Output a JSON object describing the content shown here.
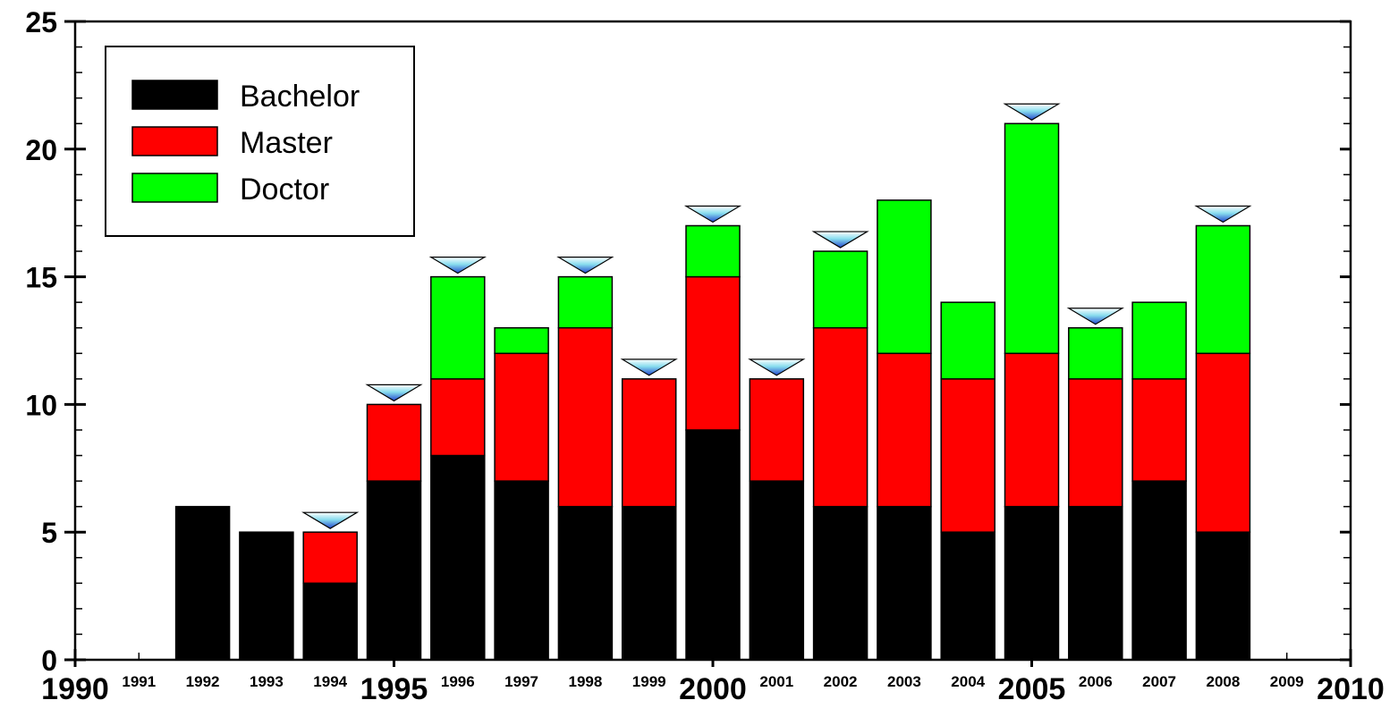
{
  "chart_data": {
    "type": "bar",
    "stacked": true,
    "title": "",
    "xlabel": "",
    "ylabel": "",
    "categories": [
      1992,
      1993,
      1994,
      1995,
      1996,
      1997,
      1998,
      1999,
      2000,
      2001,
      2002,
      2003,
      2004,
      2005,
      2006,
      2007,
      2008
    ],
    "series": [
      {
        "name": "Bachelor",
        "color": "#000000",
        "values": [
          6,
          5,
          3,
          7,
          8,
          7,
          6,
          6,
          9,
          7,
          6,
          6,
          5,
          6,
          6,
          7,
          5
        ]
      },
      {
        "name": "Master",
        "color": "#ff0000",
        "values": [
          0,
          0,
          2,
          3,
          3,
          5,
          7,
          5,
          6,
          4,
          7,
          6,
          6,
          6,
          5,
          4,
          7
        ]
      },
      {
        "name": "Doctor",
        "color": "#00ff00",
        "values": [
          0,
          0,
          0,
          0,
          4,
          1,
          2,
          0,
          2,
          0,
          3,
          6,
          3,
          9,
          2,
          3,
          5
        ]
      }
    ],
    "markers": {
      "shape": "triangle-down",
      "color": "#3366cc",
      "years": [
        1994,
        1995,
        1996,
        1998,
        1999,
        2000,
        2001,
        2002,
        2005,
        2006,
        2008
      ]
    },
    "xlim": [
      1990,
      2010
    ],
    "ylim": [
      0,
      25
    ],
    "y_ticks": [
      "0",
      "5",
      "10",
      "15",
      "20",
      "25"
    ],
    "x_major_ticks": [
      "1990",
      "1995",
      "2000",
      "2005",
      "2010"
    ],
    "x_minor_ticks": [
      "1991",
      "1992",
      "1993",
      "1994",
      "1996",
      "1997",
      "1998",
      "1999",
      "2001",
      "2002",
      "2003",
      "2004",
      "2006",
      "2007",
      "2008",
      "2009"
    ],
    "legend": {
      "position": "top-left"
    },
    "grid": false
  }
}
